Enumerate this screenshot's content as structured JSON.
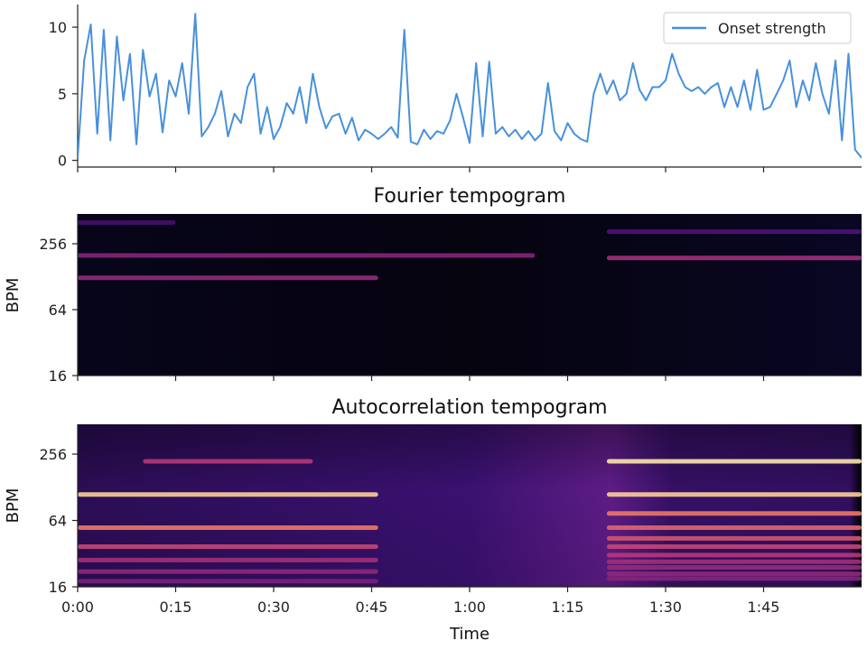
{
  "chart_data": [
    {
      "type": "line",
      "panel": "onset",
      "title": "",
      "xlabel": "",
      "ylabel": "",
      "xlim": [
        0,
        120
      ],
      "ylim": [
        -0.5,
        11.7
      ],
      "yticks": [
        0,
        5,
        10
      ],
      "ytick_labels": [
        "0",
        "5",
        "10"
      ],
      "series": [
        {
          "name": "Onset strength",
          "color": "#4890dc",
          "x": [
            0,
            1,
            2,
            3,
            4,
            5,
            6,
            7,
            8,
            9,
            10,
            11,
            12,
            13,
            14,
            15,
            16,
            17,
            18,
            19,
            20,
            21,
            22,
            23,
            24,
            25,
            26,
            27,
            28,
            29,
            30,
            31,
            32,
            33,
            34,
            35,
            36,
            37,
            38,
            39,
            40,
            41,
            42,
            43,
            44,
            45,
            46,
            47,
            48,
            49,
            50,
            51,
            52,
            53,
            54,
            55,
            56,
            57,
            58,
            59,
            60,
            61,
            62,
            63,
            64,
            65,
            66,
            67,
            68,
            69,
            70,
            71,
            72,
            73,
            74,
            75,
            76,
            77,
            78,
            79,
            80,
            81,
            82,
            83,
            84,
            85,
            86,
            87,
            88,
            89,
            90,
            91,
            92,
            93,
            94,
            95,
            96,
            97,
            98,
            99,
            100,
            101,
            102,
            103,
            104,
            105,
            106,
            107,
            108,
            109,
            110,
            111,
            112,
            113,
            114,
            115,
            116,
            117,
            118,
            119,
            120
          ],
          "y": [
            0.2,
            7.5,
            10.2,
            2.0,
            9.8,
            1.5,
            9.3,
            4.5,
            8.0,
            1.2,
            8.3,
            4.8,
            6.5,
            2.1,
            6.0,
            4.8,
            7.3,
            3.5,
            11.0,
            1.8,
            2.5,
            3.5,
            5.2,
            1.8,
            3.5,
            2.8,
            5.5,
            6.5,
            2.0,
            4.0,
            1.6,
            2.5,
            4.3,
            3.5,
            5.5,
            2.8,
            6.5,
            4.0,
            2.4,
            3.3,
            3.5,
            2.0,
            3.2,
            1.5,
            2.3,
            2.0,
            1.6,
            2.0,
            2.5,
            1.7,
            9.8,
            1.4,
            1.2,
            2.3,
            1.6,
            2.2,
            2.0,
            3.0,
            5.0,
            3.2,
            1.3,
            7.3,
            1.8,
            7.4,
            2.0,
            2.5,
            1.8,
            2.3,
            1.6,
            2.2,
            1.5,
            2.0,
            5.8,
            2.2,
            1.5,
            2.8,
            2.0,
            1.6,
            1.4,
            5.0,
            6.5,
            5.0,
            6.0,
            4.5,
            5.0,
            7.3,
            5.3,
            4.5,
            5.5,
            5.5,
            6.0,
            8.0,
            6.5,
            5.5,
            5.2,
            5.5,
            5.0,
            5.5,
            5.8,
            4.0,
            5.5,
            4.0,
            6.0,
            3.8,
            6.8,
            3.8,
            4.0,
            5.0,
            6.0,
            7.5,
            4.0,
            6.0,
            4.5,
            7.3,
            5.0,
            3.5,
            7.5,
            1.5,
            8.0,
            0.8,
            0.2
          ]
        }
      ],
      "legend": "top-right"
    },
    {
      "type": "heatmap",
      "panel": "fourier",
      "title": "Fourier tempogram",
      "xlabel": "",
      "ylabel": "BPM",
      "ytick_labels": [
        "16",
        "64",
        "256"
      ],
      "colormap": "magma",
      "bands": [
        {
          "bpm": 125,
          "t_start": 0,
          "t_end": 46,
          "intensity": 0.42
        },
        {
          "bpm": 200,
          "t_start": 0,
          "t_end": 70,
          "intensity": 0.38
        },
        {
          "bpm": 190,
          "t_start": 81,
          "t_end": 120,
          "intensity": 0.45
        },
        {
          "bpm": 330,
          "t_start": 81,
          "t_end": 120,
          "intensity": 0.25
        },
        {
          "bpm": 400,
          "t_start": 0,
          "t_end": 15,
          "intensity": 0.22
        }
      ]
    },
    {
      "type": "heatmap",
      "panel": "autocorrelation",
      "title": "Autocorrelation tempogram",
      "xlabel": "Time",
      "ylabel": "BPM",
      "ytick_labels": [
        "16",
        "64",
        "256"
      ],
      "xtick_labels": [
        "0:00",
        "0:15",
        "0:30",
        "0:45",
        "1:00",
        "1:15",
        "1:30",
        "1:45"
      ],
      "xticks": [
        0,
        15,
        30,
        45,
        60,
        75,
        90,
        105
      ],
      "colormap": "magma",
      "bands": [
        {
          "bpm": 110,
          "t_start": 0,
          "t_end": 46,
          "intensity": 0.9
        },
        {
          "bpm": 55,
          "t_start": 0,
          "t_end": 46,
          "intensity": 0.7
        },
        {
          "bpm": 37,
          "t_start": 0,
          "t_end": 46,
          "intensity": 0.55
        },
        {
          "bpm": 28,
          "t_start": 0,
          "t_end": 46,
          "intensity": 0.45
        },
        {
          "bpm": 22,
          "t_start": 0,
          "t_end": 46,
          "intensity": 0.4
        },
        {
          "bpm": 18,
          "t_start": 0,
          "t_end": 46,
          "intensity": 0.35
        },
        {
          "bpm": 220,
          "t_start": 10,
          "t_end": 36,
          "intensity": 0.5
        },
        {
          "bpm": 220,
          "t_start": 81,
          "t_end": 120,
          "intensity": 0.95
        },
        {
          "bpm": 110,
          "t_start": 81,
          "t_end": 120,
          "intensity": 0.9
        },
        {
          "bpm": 74,
          "t_start": 81,
          "t_end": 120,
          "intensity": 0.7
        },
        {
          "bpm": 55,
          "t_start": 81,
          "t_end": 120,
          "intensity": 0.65
        },
        {
          "bpm": 44,
          "t_start": 81,
          "t_end": 120,
          "intensity": 0.6
        },
        {
          "bpm": 37,
          "t_start": 81,
          "t_end": 120,
          "intensity": 0.55
        },
        {
          "bpm": 31,
          "t_start": 81,
          "t_end": 120,
          "intensity": 0.5
        },
        {
          "bpm": 27,
          "t_start": 81,
          "t_end": 120,
          "intensity": 0.45
        },
        {
          "bpm": 24,
          "t_start": 81,
          "t_end": 120,
          "intensity": 0.42
        },
        {
          "bpm": 21,
          "t_start": 81,
          "t_end": 120,
          "intensity": 0.4
        },
        {
          "bpm": 19,
          "t_start": 81,
          "t_end": 120,
          "intensity": 0.38
        }
      ]
    }
  ]
}
